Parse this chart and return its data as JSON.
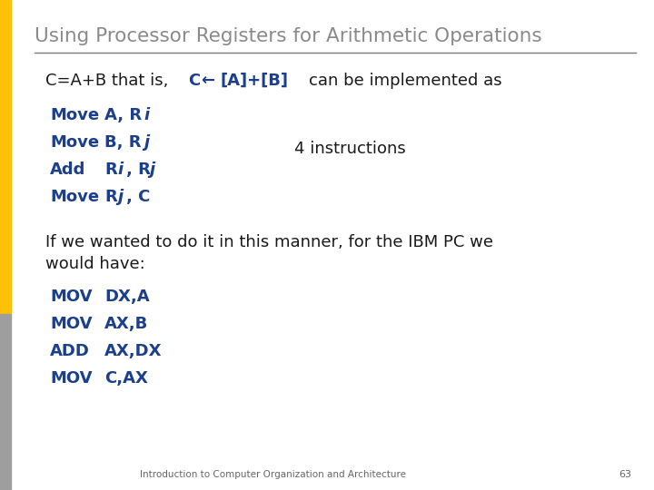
{
  "title": "Using Processor Registers for Arithmetic Operations",
  "title_color": "#8A8A8A",
  "title_fontsize": 15.5,
  "background_color": "#FFFFFF",
  "orange_color": "#FFC107",
  "gray_color": "#9E9E9E",
  "line_color": "#7A7A7A",
  "blue_color": "#1B3F8B",
  "body_text_color": "#1A1A1A",
  "footer_text": "Introduction to Computer Organization and Architecture",
  "page_number": "63"
}
